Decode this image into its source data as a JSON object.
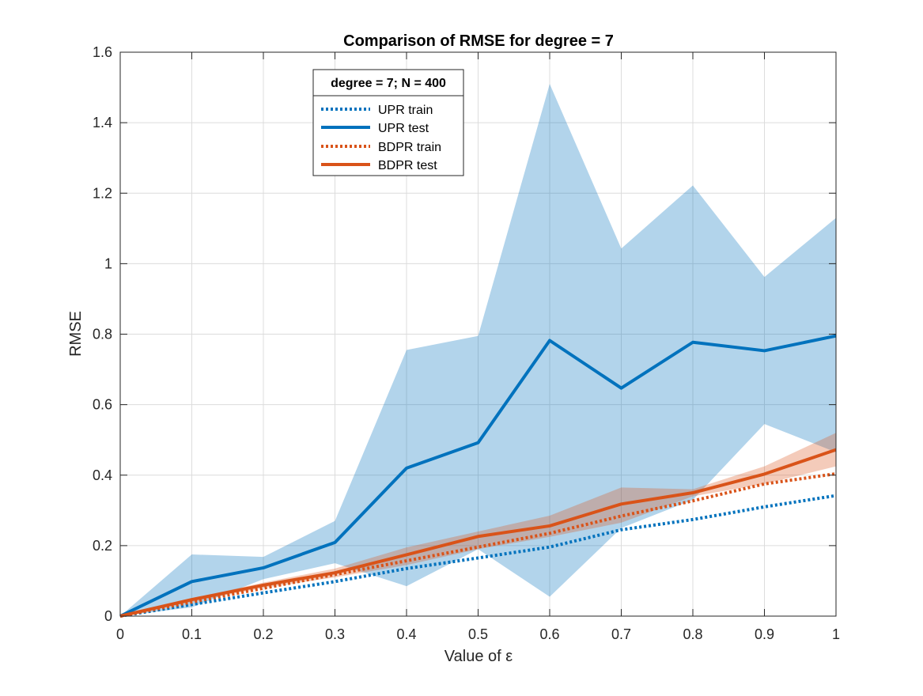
{
  "chart_data": {
    "type": "line",
    "title": "Comparison of RMSE for degree = 7",
    "xlabel": "Value of ε",
    "ylabel": "RMSE",
    "xlim": [
      0,
      1
    ],
    "ylim": [
      0,
      1.6
    ],
    "x_ticks": [
      0,
      0.1,
      0.2,
      0.3,
      0.4,
      0.5,
      0.6,
      0.7,
      0.8,
      0.9,
      1
    ],
    "x_tick_labels": [
      "0",
      "0.1",
      "0.2",
      "0.3",
      "0.4",
      "0.5",
      "0.6",
      "0.7",
      "0.8",
      "0.9",
      "1"
    ],
    "y_ticks": [
      0,
      0.2,
      0.4,
      0.6,
      0.8,
      1,
      1.2,
      1.4,
      1.6
    ],
    "y_tick_labels": [
      "0",
      "0.2",
      "0.4",
      "0.6",
      "0.8",
      "1",
      "1.2",
      "1.4",
      "1.6"
    ],
    "grid": true,
    "legend": {
      "title": "degree = 7; N = 400",
      "placement": "top-left inside"
    },
    "x": [
      0,
      0.1,
      0.2,
      0.3,
      0.4,
      0.5,
      0.6,
      0.7,
      0.8,
      0.9,
      1.0
    ],
    "bands": [
      {
        "color": "#0072BD",
        "opacity": 0.3,
        "upper": [
          0,
          0.175,
          0.168,
          0.27,
          0.755,
          0.795,
          1.51,
          1.043,
          1.222,
          0.962,
          1.13
        ],
        "lower": [
          0,
          0.025,
          0.105,
          0.15,
          0.085,
          0.19,
          0.055,
          0.25,
          0.33,
          0.545,
          0.465
        ]
      },
      {
        "color": "#D95319",
        "opacity": 0.3,
        "upper": [
          0,
          0.05,
          0.095,
          0.135,
          0.195,
          0.24,
          0.285,
          0.365,
          0.36,
          0.425,
          0.52
        ],
        "lower": [
          0,
          0.04,
          0.08,
          0.11,
          0.145,
          0.19,
          0.225,
          0.265,
          0.34,
          0.375,
          0.425
        ]
      }
    ],
    "series": [
      {
        "name": "UPR train",
        "color": "#0072BD",
        "style": "dotted",
        "values": [
          0,
          0.033,
          0.066,
          0.098,
          0.135,
          0.165,
          0.196,
          0.245,
          0.274,
          0.31,
          0.342
        ]
      },
      {
        "name": "UPR test",
        "color": "#0072BD",
        "style": "solid",
        "values": [
          0,
          0.098,
          0.137,
          0.209,
          0.42,
          0.492,
          0.782,
          0.647,
          0.777,
          0.753,
          0.795
        ]
      },
      {
        "name": "BDPR train",
        "color": "#D95319",
        "style": "dotted",
        "values": [
          0,
          0.04,
          0.079,
          0.118,
          0.157,
          0.196,
          0.235,
          0.284,
          0.327,
          0.375,
          0.404
        ]
      },
      {
        "name": "BDPR test",
        "color": "#D95319",
        "style": "solid",
        "values": [
          0,
          0.047,
          0.088,
          0.123,
          0.174,
          0.226,
          0.256,
          0.318,
          0.35,
          0.403,
          0.472
        ]
      }
    ]
  }
}
